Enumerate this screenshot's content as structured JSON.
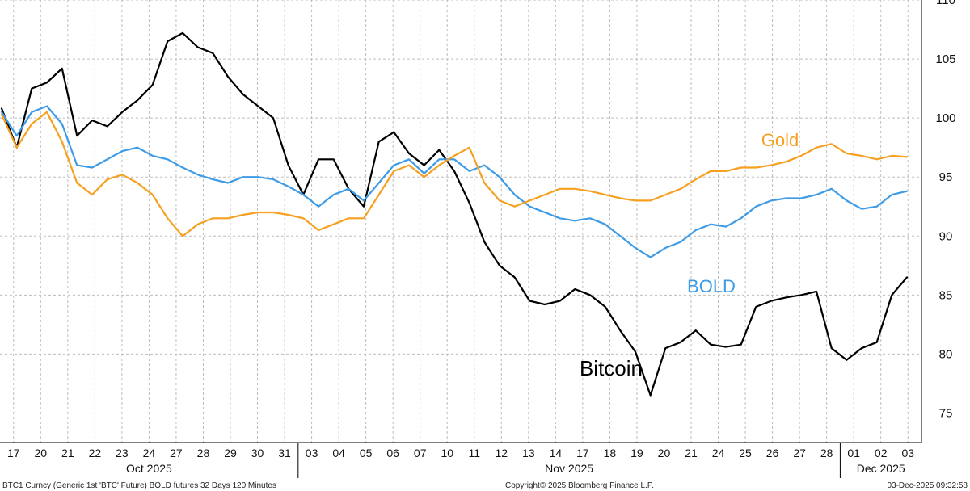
{
  "chart_data": {
    "type": "line",
    "ylim": [
      72.5,
      110
    ],
    "yticks": [
      75,
      80,
      85,
      90,
      95,
      100,
      105,
      110
    ],
    "grid": true,
    "x_labels": [
      "17",
      "20",
      "21",
      "22",
      "23",
      "24",
      "27",
      "28",
      "29",
      "30",
      "31",
      "03",
      "04",
      "05",
      "06",
      "07",
      "10",
      "11",
      "12",
      "13",
      "14",
      "17",
      "18",
      "19",
      "20",
      "21",
      "24",
      "25",
      "26",
      "27",
      "28",
      "01",
      "02",
      "03"
    ],
    "months": [
      {
        "label": "Oct 2025",
        "start": 0,
        "end": 10
      },
      {
        "label": "Nov 2025",
        "start": 11,
        "end": 30
      },
      {
        "label": "Dec 2025",
        "start": 31,
        "end": 33
      }
    ],
    "series": [
      {
        "name": "Bitcoin",
        "color": "#000000",
        "values": [
          100.8,
          97.5,
          102.5,
          103.0,
          104.2,
          98.5,
          99.8,
          99.3,
          100.5,
          101.5,
          102.8,
          106.5,
          107.2,
          106.0,
          105.5,
          103.5,
          102.0,
          101.0,
          100.0,
          96.0,
          93.5,
          96.5,
          96.5,
          94.0,
          92.5,
          98.0,
          98.8,
          97.0,
          96.0,
          97.3,
          95.5,
          92.8,
          89.5,
          87.5,
          86.5,
          84.5,
          84.2,
          84.5,
          85.5,
          85.0,
          84.0,
          82.0,
          80.2,
          76.5,
          80.5,
          81.0,
          82.0,
          80.8,
          80.6,
          80.8,
          84.0,
          84.5,
          84.8,
          85.0,
          85.3,
          80.5,
          79.5,
          80.5,
          81.0,
          85.0,
          86.5
        ]
      },
      {
        "name": "BOLD",
        "color": "#3e9be6",
        "values": [
          100.5,
          98.5,
          100.5,
          101.0,
          99.5,
          96.0,
          95.8,
          96.5,
          97.2,
          97.5,
          96.8,
          96.5,
          95.8,
          95.2,
          94.8,
          94.5,
          95.0,
          95.0,
          94.8,
          94.2,
          93.5,
          92.5,
          93.5,
          94.0,
          93.0,
          94.5,
          96.0,
          96.5,
          95.3,
          96.5,
          96.5,
          95.5,
          96.0,
          95.0,
          93.5,
          92.5,
          92.0,
          91.5,
          91.3,
          91.5,
          91.0,
          90.0,
          89.0,
          88.2,
          89.0,
          89.5,
          90.5,
          91.0,
          90.8,
          91.5,
          92.5,
          93.0,
          93.2,
          93.2,
          93.5,
          94.0,
          93.0,
          92.3,
          92.5,
          93.5,
          93.8
        ]
      },
      {
        "name": "Gold",
        "color": "#f5a020",
        "values": [
          100.3,
          97.5,
          99.5,
          100.5,
          98.0,
          94.5,
          93.5,
          94.8,
          95.2,
          94.5,
          93.5,
          91.5,
          90.0,
          91.0,
          91.5,
          91.5,
          91.8,
          92.0,
          92.0,
          91.8,
          91.5,
          90.5,
          91.0,
          91.5,
          91.5,
          93.5,
          95.5,
          96.0,
          95.0,
          96.0,
          96.8,
          97.5,
          94.5,
          93.0,
          92.5,
          93.0,
          93.5,
          94.0,
          94.0,
          93.8,
          93.5,
          93.2,
          93.0,
          93.0,
          93.5,
          94.0,
          94.8,
          95.5,
          95.5,
          95.8,
          95.8,
          96.0,
          96.3,
          96.8,
          97.5,
          97.8,
          97.0,
          96.8,
          96.5,
          96.8,
          96.7
        ]
      }
    ],
    "annotations": [
      {
        "text": "Gold",
        "series": "Gold"
      },
      {
        "text": "BOLD",
        "series": "BOLD"
      },
      {
        "text": "Bitcoin",
        "series": "Bitcoin"
      }
    ],
    "footer_left": "BTC1 Curncy (Generic 1st 'BTC' Future) BOLD futures 32 Days 120 Minutes",
    "footer_center": "Copyright© 2025 Bloomberg Finance L.P.",
    "footer_right": "03-Dec-2025 09:32:58"
  }
}
